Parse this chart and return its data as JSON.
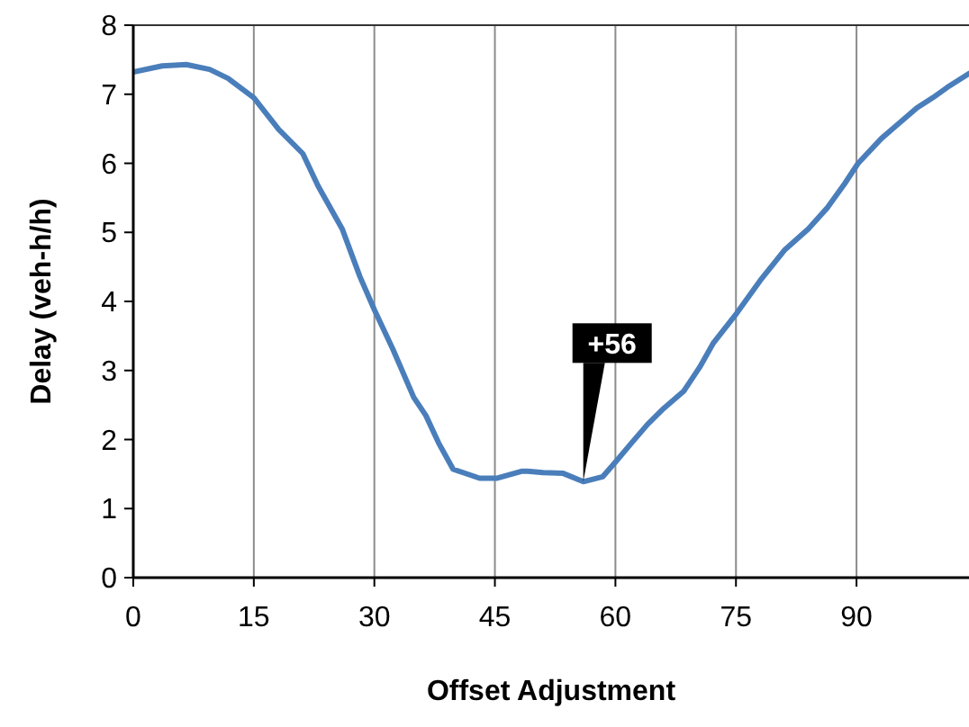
{
  "chart_data": {
    "type": "line",
    "xlabel": "Offset Adjustment",
    "ylabel": "Delay (veh-h/h)",
    "x": [
      0,
      3.6,
      6.6,
      9.5,
      11.8,
      15,
      18.1,
      21.1,
      23,
      26,
      28.2,
      30,
      32.3,
      34.9,
      36.4,
      38,
      39.8,
      43.1,
      45.3,
      48.3,
      49.1,
      51,
      53.5,
      56,
      58.4,
      60.2,
      62,
      64,
      66,
      68.5,
      70.5,
      72.2,
      75.1,
      78,
      81.1,
      84,
      86.4,
      88.5,
      90.2,
      93.1,
      95,
      97.5,
      99.5,
      101.3,
      104
    ],
    "series": [
      {
        "color": "#4a7ebb",
        "values": [
          7.32,
          7.41,
          7.43,
          7.36,
          7.23,
          6.95,
          6.49,
          6.14,
          5.67,
          5.05,
          4.36,
          3.88,
          3.31,
          2.61,
          2.35,
          1.95,
          1.57,
          1.44,
          1.44,
          1.54,
          1.54,
          1.52,
          1.51,
          1.39,
          1.46,
          1.7,
          1.95,
          2.22,
          2.45,
          2.7,
          3.05,
          3.4,
          3.83,
          4.3,
          4.75,
          5.05,
          5.36,
          5.7,
          6.0,
          6.36,
          6.55,
          6.8,
          6.95,
          7.1,
          7.3
        ]
      }
    ],
    "xlim": [
      0,
      104
    ],
    "xticks": [
      0,
      15,
      30,
      45,
      60,
      75,
      90
    ],
    "ylim": [
      0,
      8
    ],
    "yticks": [
      0,
      1,
      2,
      3,
      4,
      5,
      6,
      7,
      8
    ],
    "grid": "x",
    "marker": "none",
    "line_style": "solid",
    "annotations": [
      {
        "text": "+56",
        "x": 56,
        "y": 1.39
      }
    ]
  }
}
